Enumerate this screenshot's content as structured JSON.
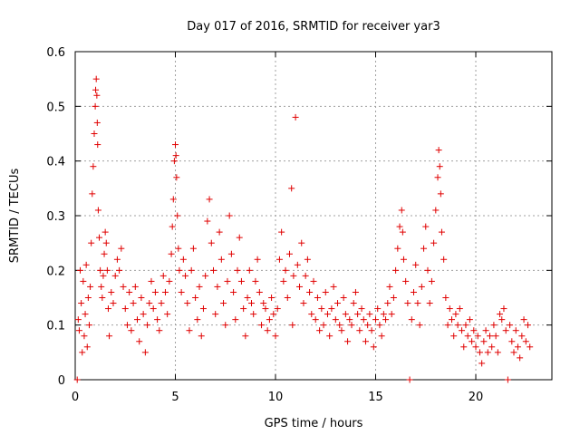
{
  "chart_data": {
    "type": "scatter",
    "title": "Day 017 of 2016, SRMTID for receiver yar3",
    "xlabel": "GPS time / hours",
    "ylabel": "SRMTID / TECUs",
    "xlim": [
      0,
      23.8
    ],
    "ylim": [
      0,
      0.6
    ],
    "xticks": [
      0,
      5,
      10,
      15,
      20
    ],
    "yticks": [
      0,
      0.1,
      0.2,
      0.3,
      0.4,
      0.5,
      0.6
    ],
    "ytick_labels": [
      "0",
      "0.1",
      "0.2",
      "0.3",
      "0.4",
      "0.5",
      "0.6"
    ],
    "grid": true,
    "marker": "+",
    "color": "#e00000",
    "series": [
      {
        "name": "SRMTID",
        "points": [
          [
            0.1,
            0.0
          ],
          [
            0.15,
            0.11
          ],
          [
            0.2,
            0.09
          ],
          [
            0.25,
            0.2
          ],
          [
            0.3,
            0.14
          ],
          [
            0.35,
            0.05
          ],
          [
            0.4,
            0.18
          ],
          [
            0.45,
            0.08
          ],
          [
            0.5,
            0.12
          ],
          [
            0.55,
            0.21
          ],
          [
            0.6,
            0.06
          ],
          [
            0.65,
            0.15
          ],
          [
            0.7,
            0.1
          ],
          [
            0.75,
            0.17
          ],
          [
            0.8,
            0.25
          ],
          [
            0.85,
            0.34
          ],
          [
            0.9,
            0.39
          ],
          [
            0.95,
            0.45
          ],
          [
            1.0,
            0.5
          ],
          [
            1.02,
            0.53
          ],
          [
            1.05,
            0.55
          ],
          [
            1.08,
            0.52
          ],
          [
            1.1,
            0.47
          ],
          [
            1.12,
            0.43
          ],
          [
            1.15,
            0.31
          ],
          [
            1.2,
            0.26
          ],
          [
            1.25,
            0.2
          ],
          [
            1.3,
            0.17
          ],
          [
            1.35,
            0.15
          ],
          [
            1.4,
            0.19
          ],
          [
            1.45,
            0.23
          ],
          [
            1.5,
            0.27
          ],
          [
            1.55,
            0.25
          ],
          [
            1.6,
            0.2
          ],
          [
            1.65,
            0.13
          ],
          [
            1.7,
            0.08
          ],
          [
            1.8,
            0.16
          ],
          [
            1.9,
            0.14
          ],
          [
            2.0,
            0.19
          ],
          [
            2.1,
            0.22
          ],
          [
            2.2,
            0.2
          ],
          [
            2.3,
            0.24
          ],
          [
            2.4,
            0.17
          ],
          [
            2.5,
            0.13
          ],
          [
            2.6,
            0.1
          ],
          [
            2.7,
            0.16
          ],
          [
            2.8,
            0.09
          ],
          [
            2.9,
            0.14
          ],
          [
            3.0,
            0.17
          ],
          [
            3.1,
            0.11
          ],
          [
            3.2,
            0.07
          ],
          [
            3.3,
            0.15
          ],
          [
            3.4,
            0.12
          ],
          [
            3.5,
            0.05
          ],
          [
            3.6,
            0.1
          ],
          [
            3.7,
            0.14
          ],
          [
            3.8,
            0.18
          ],
          [
            3.9,
            0.13
          ],
          [
            4.0,
            0.16
          ],
          [
            4.1,
            0.11
          ],
          [
            4.2,
            0.09
          ],
          [
            4.3,
            0.14
          ],
          [
            4.4,
            0.19
          ],
          [
            4.5,
            0.16
          ],
          [
            4.6,
            0.12
          ],
          [
            4.7,
            0.18
          ],
          [
            4.8,
            0.23
          ],
          [
            4.85,
            0.28
          ],
          [
            4.9,
            0.33
          ],
          [
            4.95,
            0.4
          ],
          [
            5.0,
            0.43
          ],
          [
            5.03,
            0.41
          ],
          [
            5.06,
            0.37
          ],
          [
            5.1,
            0.3
          ],
          [
            5.15,
            0.24
          ],
          [
            5.2,
            0.2
          ],
          [
            5.3,
            0.16
          ],
          [
            5.4,
            0.22
          ],
          [
            5.5,
            0.19
          ],
          [
            5.6,
            0.14
          ],
          [
            5.7,
            0.09
          ],
          [
            5.8,
            0.2
          ],
          [
            5.9,
            0.24
          ],
          [
            6.0,
            0.15
          ],
          [
            6.1,
            0.11
          ],
          [
            6.2,
            0.17
          ],
          [
            6.3,
            0.08
          ],
          [
            6.4,
            0.13
          ],
          [
            6.5,
            0.19
          ],
          [
            6.6,
            0.29
          ],
          [
            6.7,
            0.33
          ],
          [
            6.8,
            0.25
          ],
          [
            6.9,
            0.2
          ],
          [
            7.0,
            0.12
          ],
          [
            7.1,
            0.17
          ],
          [
            7.2,
            0.27
          ],
          [
            7.3,
            0.22
          ],
          [
            7.4,
            0.14
          ],
          [
            7.5,
            0.1
          ],
          [
            7.6,
            0.18
          ],
          [
            7.7,
            0.3
          ],
          [
            7.8,
            0.23
          ],
          [
            7.9,
            0.16
          ],
          [
            8.0,
            0.11
          ],
          [
            8.1,
            0.2
          ],
          [
            8.2,
            0.26
          ],
          [
            8.3,
            0.18
          ],
          [
            8.4,
            0.13
          ],
          [
            8.5,
            0.08
          ],
          [
            8.6,
            0.15
          ],
          [
            8.7,
            0.2
          ],
          [
            8.8,
            0.14
          ],
          [
            8.9,
            0.12
          ],
          [
            9.0,
            0.18
          ],
          [
            9.1,
            0.22
          ],
          [
            9.2,
            0.16
          ],
          [
            9.3,
            0.1
          ],
          [
            9.4,
            0.14
          ],
          [
            9.5,
            0.13
          ],
          [
            9.6,
            0.09
          ],
          [
            9.7,
            0.11
          ],
          [
            9.8,
            0.15
          ],
          [
            9.9,
            0.12
          ],
          [
            10.0,
            0.08
          ],
          [
            10.1,
            0.13
          ],
          [
            10.2,
            0.22
          ],
          [
            10.3,
            0.27
          ],
          [
            10.4,
            0.18
          ],
          [
            10.5,
            0.2
          ],
          [
            10.6,
            0.15
          ],
          [
            10.7,
            0.23
          ],
          [
            10.8,
            0.35
          ],
          [
            10.85,
            0.1
          ],
          [
            10.9,
            0.19
          ],
          [
            11.0,
            0.48
          ],
          [
            11.1,
            0.21
          ],
          [
            11.2,
            0.17
          ],
          [
            11.3,
            0.25
          ],
          [
            11.4,
            0.14
          ],
          [
            11.5,
            0.19
          ],
          [
            11.6,
            0.22
          ],
          [
            11.7,
            0.16
          ],
          [
            11.8,
            0.12
          ],
          [
            11.9,
            0.18
          ],
          [
            12.0,
            0.11
          ],
          [
            12.1,
            0.15
          ],
          [
            12.2,
            0.09
          ],
          [
            12.3,
            0.13
          ],
          [
            12.4,
            0.1
          ],
          [
            12.5,
            0.16
          ],
          [
            12.6,
            0.12
          ],
          [
            12.7,
            0.08
          ],
          [
            12.8,
            0.13
          ],
          [
            12.9,
            0.17
          ],
          [
            13.0,
            0.11
          ],
          [
            13.1,
            0.14
          ],
          [
            13.2,
            0.1
          ],
          [
            13.3,
            0.09
          ],
          [
            13.4,
            0.15
          ],
          [
            13.5,
            0.12
          ],
          [
            13.6,
            0.07
          ],
          [
            13.7,
            0.11
          ],
          [
            13.8,
            0.1
          ],
          [
            13.9,
            0.14
          ],
          [
            14.0,
            0.16
          ],
          [
            14.1,
            0.12
          ],
          [
            14.2,
            0.09
          ],
          [
            14.3,
            0.13
          ],
          [
            14.4,
            0.11
          ],
          [
            14.5,
            0.07
          ],
          [
            14.6,
            0.1
          ],
          [
            14.7,
            0.12
          ],
          [
            14.8,
            0.09
          ],
          [
            14.9,
            0.06
          ],
          [
            15.0,
            0.11
          ],
          [
            15.1,
            0.13
          ],
          [
            15.2,
            0.1
          ],
          [
            15.3,
            0.08
          ],
          [
            15.4,
            0.12
          ],
          [
            15.5,
            0.11
          ],
          [
            15.6,
            0.14
          ],
          [
            15.7,
            0.17
          ],
          [
            15.8,
            0.12
          ],
          [
            15.9,
            0.15
          ],
          [
            16.0,
            0.2
          ],
          [
            16.1,
            0.24
          ],
          [
            16.2,
            0.28
          ],
          [
            16.3,
            0.31
          ],
          [
            16.35,
            0.27
          ],
          [
            16.4,
            0.22
          ],
          [
            16.5,
            0.18
          ],
          [
            16.6,
            0.14
          ],
          [
            16.7,
            0.0
          ],
          [
            16.8,
            0.11
          ],
          [
            16.9,
            0.16
          ],
          [
            17.0,
            0.21
          ],
          [
            17.1,
            0.14
          ],
          [
            17.2,
            0.1
          ],
          [
            17.3,
            0.17
          ],
          [
            17.4,
            0.24
          ],
          [
            17.5,
            0.28
          ],
          [
            17.6,
            0.2
          ],
          [
            17.7,
            0.14
          ],
          [
            17.8,
            0.18
          ],
          [
            17.9,
            0.25
          ],
          [
            18.0,
            0.31
          ],
          [
            18.1,
            0.37
          ],
          [
            18.15,
            0.42
          ],
          [
            18.2,
            0.39
          ],
          [
            18.25,
            0.34
          ],
          [
            18.3,
            0.27
          ],
          [
            18.4,
            0.22
          ],
          [
            18.5,
            0.15
          ],
          [
            18.6,
            0.1
          ],
          [
            18.7,
            0.13
          ],
          [
            18.8,
            0.11
          ],
          [
            18.9,
            0.08
          ],
          [
            19.0,
            0.12
          ],
          [
            19.1,
            0.1
          ],
          [
            19.2,
            0.13
          ],
          [
            19.3,
            0.09
          ],
          [
            19.4,
            0.06
          ],
          [
            19.5,
            0.1
          ],
          [
            19.6,
            0.08
          ],
          [
            19.7,
            0.11
          ],
          [
            19.8,
            0.07
          ],
          [
            19.9,
            0.09
          ],
          [
            20.0,
            0.06
          ],
          [
            20.1,
            0.08
          ],
          [
            20.2,
            0.05
          ],
          [
            20.3,
            0.03
          ],
          [
            20.4,
            0.07
          ],
          [
            20.5,
            0.09
          ],
          [
            20.6,
            0.05
          ],
          [
            20.7,
            0.08
          ],
          [
            20.8,
            0.06
          ],
          [
            20.9,
            0.1
          ],
          [
            21.0,
            0.08
          ],
          [
            21.1,
            0.05
          ],
          [
            21.2,
            0.12
          ],
          [
            21.3,
            0.11
          ],
          [
            21.4,
            0.13
          ],
          [
            21.5,
            0.09
          ],
          [
            21.6,
            0.0
          ],
          [
            21.7,
            0.1
          ],
          [
            21.8,
            0.07
          ],
          [
            21.9,
            0.05
          ],
          [
            22.0,
            0.09
          ],
          [
            22.1,
            0.06
          ],
          [
            22.2,
            0.04
          ],
          [
            22.3,
            0.08
          ],
          [
            22.4,
            0.11
          ],
          [
            22.5,
            0.07
          ],
          [
            22.6,
            0.1
          ],
          [
            22.7,
            0.06
          ]
        ]
      }
    ]
  }
}
